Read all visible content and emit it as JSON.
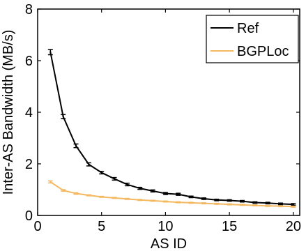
{
  "chart_data": {
    "type": "line",
    "xlabel": "AS ID",
    "ylabel": "Inter-AS Bandwidth (MB/s)",
    "xlim": [
      0,
      20.5
    ],
    "ylim": [
      0,
      8
    ],
    "xticks": [
      0,
      5,
      10,
      15,
      20
    ],
    "yticks": [
      0,
      2,
      4,
      6,
      8
    ],
    "x_tick_labels": [
      "0",
      "5",
      "10",
      "15",
      "20"
    ],
    "y_tick_labels": [
      "0",
      "2",
      "4",
      "6",
      "8"
    ],
    "grid": false,
    "legend_position": "top-right",
    "x": [
      1,
      2,
      3,
      4,
      5,
      6,
      7,
      8,
      9,
      10,
      11,
      12,
      13,
      14,
      15,
      16,
      17,
      18,
      19,
      20
    ],
    "series": [
      {
        "name": "Ref",
        "color": "#000000",
        "values": [
          6.33,
          3.83,
          2.7,
          1.98,
          1.66,
          1.42,
          1.2,
          1.05,
          0.95,
          0.85,
          0.82,
          0.72,
          0.65,
          0.6,
          0.58,
          0.55,
          0.5,
          0.48,
          0.45,
          0.43
        ],
        "error": [
          0.1,
          0.08,
          0.07,
          0.06,
          0.05,
          0.05,
          0.05,
          0.04,
          0.04,
          0.04,
          0.04,
          0.03,
          0.03,
          0.03,
          0.03,
          0.03,
          0.03,
          0.03,
          0.03,
          0.03
        ]
      },
      {
        "name": "BGPLoc",
        "color": "#f4b860",
        "values": [
          1.3,
          0.97,
          0.85,
          0.78,
          0.72,
          0.68,
          0.64,
          0.6,
          0.57,
          0.54,
          0.51,
          0.49,
          0.47,
          0.45,
          0.43,
          0.41,
          0.39,
          0.37,
          0.36,
          0.34
        ],
        "error": [
          0.04,
          0.03,
          0.03,
          0.02,
          0.02,
          0.02,
          0.02,
          0.02,
          0.02,
          0.02,
          0.02,
          0.02,
          0.02,
          0.02,
          0.02,
          0.02,
          0.02,
          0.02,
          0.02,
          0.02
        ]
      }
    ]
  }
}
